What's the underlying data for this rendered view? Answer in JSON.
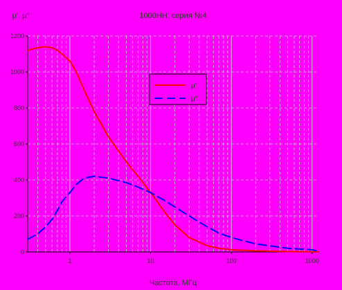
{
  "chart_data": {
    "type": "line",
    "title": "1000НН: серия №4",
    "ylabel": "μ', μ\"",
    "xlabel": "Частота, МГц",
    "x_scale": "log",
    "xlim": [
      0.3,
      1200
    ],
    "ylim": [
      0,
      1200
    ],
    "x_ticks": [
      "1",
      "10",
      "100",
      "1000"
    ],
    "y_ticks": [
      "0",
      "200",
      "400",
      "600",
      "800",
      "1000",
      "1200"
    ],
    "grid": true,
    "legend_position": "upper-center",
    "series": [
      {
        "name": "μ'",
        "color": "#ff0000",
        "dash": "solid",
        "x": [
          0.3,
          0.4,
          0.5,
          0.6,
          0.7,
          0.8,
          1,
          1.2,
          1.5,
          2,
          3,
          5,
          7,
          10,
          15,
          20,
          30,
          50,
          70,
          100,
          200,
          500,
          1000,
          1200
        ],
        "y": [
          1120,
          1135,
          1140,
          1135,
          1120,
          1100,
          1060,
          1000,
          900,
          780,
          640,
          500,
          420,
          330,
          220,
          150,
          80,
          35,
          20,
          12,
          6,
          2,
          1,
          1
        ]
      },
      {
        "name": "μ\"",
        "color": "#0000ff",
        "dash": "dashed",
        "x": [
          0.3,
          0.4,
          0.5,
          0.6,
          0.7,
          0.8,
          1,
          1.2,
          1.5,
          2,
          3,
          5,
          7,
          10,
          15,
          20,
          30,
          50,
          70,
          100,
          200,
          500,
          1000,
          1200
        ],
        "y": [
          70,
          100,
          140,
          180,
          230,
          280,
          330,
          375,
          410,
          420,
          410,
          385,
          360,
          330,
          285,
          250,
          200,
          140,
          105,
          80,
          45,
          20,
          12,
          5
        ]
      }
    ]
  }
}
